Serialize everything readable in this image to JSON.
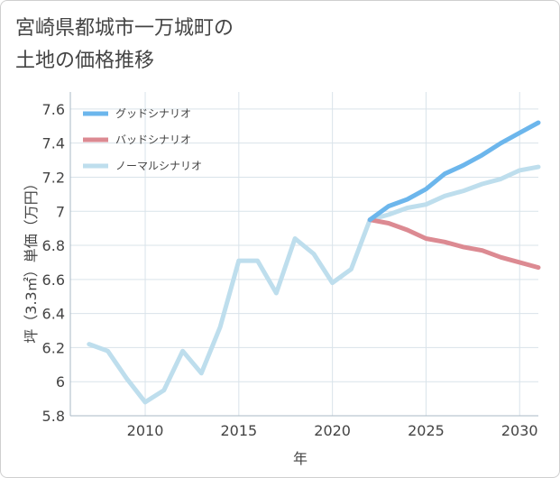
{
  "title_lines": [
    "宮崎県都城市一万城町の",
    "土地の価格推移"
  ],
  "colors": {
    "good": "#6cb6ec",
    "bad": "#dc8a92",
    "normal": "#bedeed",
    "grid": "#d9e3ea",
    "text": "#444444"
  },
  "chart_data": {
    "type": "line",
    "xlabel": "年",
    "ylabel": "坪（3.3㎡）単価（万円）",
    "xlim": [
      2006,
      2031
    ],
    "ylim": [
      5.8,
      7.7
    ],
    "xticks": [
      2010,
      2015,
      2020,
      2025,
      2030
    ],
    "yticks": [
      5.8,
      6,
      6.2,
      6.4,
      6.6,
      6.8,
      7,
      7.2,
      7.4,
      7.6
    ],
    "ytick_labels": [
      "5.8",
      "6",
      "6.2",
      "6.4",
      "6.6",
      "6.8",
      "7",
      "7.2",
      "7.4",
      "7.6"
    ],
    "legend_position": "top-left",
    "series": [
      {
        "name": "グッドシナリオ",
        "color_key": "good",
        "x": [
          2022,
          2023,
          2024,
          2025,
          2026,
          2027,
          2028,
          2029,
          2030,
          2031
        ],
        "y": [
          6.95,
          7.03,
          7.07,
          7.13,
          7.22,
          7.27,
          7.33,
          7.4,
          7.46,
          7.52
        ]
      },
      {
        "name": "バッドシナリオ",
        "color_key": "bad",
        "x": [
          2022,
          2023,
          2024,
          2025,
          2026,
          2027,
          2028,
          2029,
          2030,
          2031
        ],
        "y": [
          6.95,
          6.93,
          6.89,
          6.84,
          6.82,
          6.79,
          6.77,
          6.73,
          6.7,
          6.67
        ]
      },
      {
        "name": "ノーマルシナリオ",
        "color_key": "normal",
        "x": [
          2007,
          2008,
          2009,
          2010,
          2011,
          2012,
          2013,
          2014,
          2015,
          2016,
          2017,
          2018,
          2019,
          2020,
          2021,
          2022,
          2023,
          2024,
          2025,
          2026,
          2027,
          2028,
          2029,
          2030,
          2031
        ],
        "y": [
          6.22,
          6.18,
          6.02,
          5.88,
          5.95,
          6.18,
          6.05,
          6.32,
          6.71,
          6.71,
          6.52,
          6.84,
          6.75,
          6.58,
          6.66,
          6.95,
          6.98,
          7.02,
          7.04,
          7.09,
          7.12,
          7.16,
          7.19,
          7.24,
          7.26
        ]
      }
    ]
  }
}
